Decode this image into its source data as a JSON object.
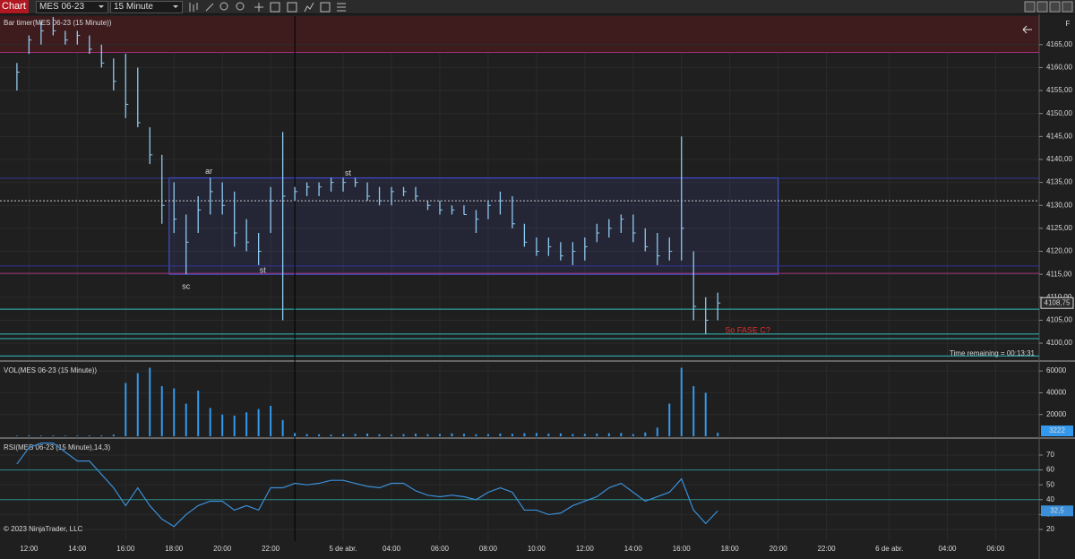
{
  "toolbar": {
    "title": "Chart",
    "instrument": "MES 06-23",
    "interval": "15 Minute",
    "pane_button": "F"
  },
  "footer": "© 2023 NinjaTrader, LLC",
  "time_remaining": "Time remaining = 00:13:31",
  "chart_data": [
    {
      "type": "ohlc",
      "title": "Bar timer(MES 06-23 (15 Minute))",
      "color": "#8ec9f0",
      "x": [
        11.5,
        12,
        12.5,
        13,
        13.5,
        14,
        14.5,
        15,
        15.5,
        16,
        16.5,
        17,
        17.5,
        18,
        18.5,
        19,
        19.5,
        20,
        20.5,
        21,
        21.5,
        22,
        22.5,
        23,
        23.5,
        24,
        24.5,
        25,
        25.5,
        26,
        26.5,
        27,
        27.5,
        28,
        28.5,
        29,
        29.5,
        30,
        30.5,
        31,
        31.5,
        32,
        32.5,
        33,
        33.5,
        34,
        34.5,
        35,
        35.5,
        36,
        36.5,
        37,
        37.5,
        38,
        38.5,
        39,
        39.5,
        40,
        40.5
      ],
      "high": [
        4161,
        4167,
        4170,
        4171,
        4168,
        4168,
        4167,
        4165,
        4162,
        4163,
        4160,
        4147,
        4141,
        4135,
        4128,
        4132,
        4136,
        4135,
        4133,
        4127,
        4124,
        4134,
        4146,
        4134,
        4135,
        4135,
        4136,
        4136,
        4136,
        4135,
        4134,
        4134,
        4134,
        4134,
        4131,
        4131,
        4130,
        4130,
        4129,
        4131,
        4133,
        4132,
        4126,
        4123,
        4123,
        4122,
        4122,
        4123,
        4126,
        4127,
        4128,
        4128,
        4125,
        4124,
        4123,
        4145,
        4120,
        4110,
        4111
      ],
      "low": [
        4155,
        4163,
        4165,
        4167,
        4165,
        4165,
        4163,
        4160,
        4155,
        4149,
        4147,
        4139,
        4126,
        4124,
        4115,
        4124,
        4128,
        4128,
        4121,
        4120,
        4117,
        4124,
        4105,
        4131,
        4132,
        4132,
        4133,
        4133,
        4134,
        4131,
        4130,
        4130,
        4132,
        4131,
        4129,
        4128,
        4128,
        4128,
        4124,
        4127,
        4128,
        4125,
        4121,
        4119,
        4119,
        4118,
        4117,
        4118,
        4122,
        4123,
        4124,
        4122,
        4120,
        4117,
        4118,
        4118,
        4105,
        4102,
        4105
      ],
      "close": [
        4159,
        4166,
        4168,
        4168,
        4166,
        4167,
        4164,
        4161,
        4157,
        4152,
        4148,
        4141,
        4130,
        4127,
        4122,
        4129,
        4133,
        4130,
        4124,
        4122,
        4120,
        4131,
        4132,
        4133,
        4134,
        4134,
        4135,
        4135,
        4135,
        4132,
        4131,
        4133,
        4133,
        4132,
        4130,
        4129,
        4129,
        4128,
        4127,
        4130,
        4131,
        4126,
        4122,
        4120,
        4121,
        4119,
        4120,
        4121,
        4124,
        4125,
        4127,
        4124,
        4121,
        4119,
        4120,
        4125,
        4108,
        4105,
        4108.75
      ],
      "last_label": "4108,75",
      "xlim": [
        10.8,
        53.8
      ],
      "xticks": [
        {
          "value": 12,
          "label": "12:00"
        },
        {
          "value": 14,
          "label": "14:00"
        },
        {
          "value": 16,
          "label": "16:00"
        },
        {
          "value": 18,
          "label": "18:00"
        },
        {
          "value": 20,
          "label": "20:00"
        },
        {
          "value": 22,
          "label": "22:00"
        },
        {
          "value": 25,
          "label": "5 de abr."
        },
        {
          "value": 27,
          "label": "04:00"
        },
        {
          "value": 29,
          "label": "06:00"
        },
        {
          "value": 31,
          "label": "08:00"
        },
        {
          "value": 33,
          "label": "10:00"
        },
        {
          "value": 35,
          "label": "12:00"
        },
        {
          "value": 37,
          "label": "14:00"
        },
        {
          "value": 39,
          "label": "16:00"
        },
        {
          "value": 41,
          "label": "18:00"
        },
        {
          "value": 43,
          "label": "20:00"
        },
        {
          "value": 45,
          "label": "22:00"
        },
        {
          "value": 47.6,
          "label": "6 de abr."
        },
        {
          "value": 50,
          "label": "04:00"
        },
        {
          "value": 52,
          "label": "06:00"
        }
      ],
      "ylim": [
        4096.7,
        4171.2
      ],
      "yticks": [
        {
          "value": 4100,
          "label": "4100,00"
        },
        {
          "value": 4105,
          "label": "4105,00"
        },
        {
          "value": 4110,
          "label": "4110,00"
        },
        {
          "value": 4115,
          "label": "4115,00"
        },
        {
          "value": 4120,
          "label": "4120,00"
        },
        {
          "value": 4125,
          "label": "4125,00"
        },
        {
          "value": 4130,
          "label": "4130,00"
        },
        {
          "value": 4135,
          "label": "4135,00"
        },
        {
          "value": 4140,
          "label": "4140,00"
        },
        {
          "value": 4145,
          "label": "4145,00"
        },
        {
          "value": 4150,
          "label": "4150,00"
        },
        {
          "value": 4155,
          "label": "4155,00"
        },
        {
          "value": 4160,
          "label": "4160,00"
        },
        {
          "value": 4165,
          "label": "4165,00"
        }
      ],
      "grid": true,
      "zone": {
        "y": [
          4163.3,
          4171.2
        ],
        "color": "#3e1c1e"
      },
      "box": {
        "x": [
          17.8,
          43
        ],
        "y": [
          4115,
          4136
        ],
        "color": "#4a5ad8"
      },
      "crosshair_x": 23,
      "levels": [
        {
          "value": 4163.3,
          "color": "#a0307a"
        },
        {
          "value": 4135.9,
          "color": "#34349a"
        },
        {
          "value": 4131,
          "color": "#cccccc",
          "dash": true
        },
        {
          "value": 4116.8,
          "color": "#34349a"
        },
        {
          "value": 4115.2,
          "color": "#a0307a"
        },
        {
          "value": 4107.4,
          "color": "#33bbbb"
        },
        {
          "value": 4102,
          "color": "#33bbbb"
        },
        {
          "value": 4101,
          "color": "#33bbbb"
        },
        {
          "value": 4097.2,
          "color": "#33bbbb"
        }
      ],
      "annotations": [
        {
          "text": "ar",
          "x": 19.44,
          "y": 4137.3
        },
        {
          "text": "st",
          "x": 25.2,
          "y": 4136.9
        },
        {
          "text": "st",
          "x": 21.67,
          "y": 4115.8
        },
        {
          "text": "sc",
          "x": 18.5,
          "y": 4112.3
        },
        {
          "text": "So FASE C?",
          "x": 40.8,
          "y": 4102.7,
          "anchor": "start",
          "color": "#e03030"
        }
      ]
    },
    {
      "type": "bar",
      "title": "VOL(MES 06-23 (15 Minute))",
      "color": "#3399ee",
      "values": [
        500,
        800,
        600,
        700,
        500,
        600,
        700,
        800,
        1500,
        49000,
        58000,
        63000,
        46000,
        44000,
        30000,
        42000,
        26000,
        20000,
        19000,
        22000,
        25000,
        28000,
        15000,
        3000,
        2000,
        1800,
        1500,
        2000,
        2200,
        2500,
        1800,
        1600,
        2000,
        2400,
        1900,
        2100,
        2600,
        2300,
        1800,
        2000,
        2500,
        2200,
        2800,
        3000,
        2400,
        2600,
        2000,
        2200,
        2500,
        2800,
        3000,
        2000,
        3500,
        8000,
        30000,
        63000,
        46000,
        40000,
        3222
      ],
      "ylim": [
        0,
        66700
      ],
      "yticks": [
        20000,
        40000,
        60000
      ],
      "grid": true
    },
    {
      "type": "line",
      "title": "RSI(MES 06-23 (15 Minute),14,3)",
      "color": "#3a8fd8",
      "values": [
        64,
        75,
        78,
        78,
        72,
        66,
        66,
        57,
        48,
        36,
        48,
        36,
        27,
        22,
        30,
        36,
        39,
        39,
        33,
        36,
        33,
        48,
        48,
        51,
        50,
        51,
        53,
        53,
        51,
        49,
        48,
        51,
        51,
        46,
        43,
        42,
        43,
        42,
        40,
        45,
        48,
        45,
        33,
        33,
        30,
        31,
        36,
        39,
        42,
        48,
        51,
        45,
        39,
        42,
        45,
        54,
        33,
        24,
        32.5
      ],
      "last_label": "32,5",
      "ylim": [
        12.2,
        79.6
      ],
      "yticks": [
        20,
        30,
        40,
        50,
        60,
        70
      ],
      "grid": true,
      "levels": [
        {
          "value": 60,
          "color": "#2a8a8a"
        },
        {
          "value": 40,
          "color": "#2a8a8a"
        }
      ]
    }
  ]
}
